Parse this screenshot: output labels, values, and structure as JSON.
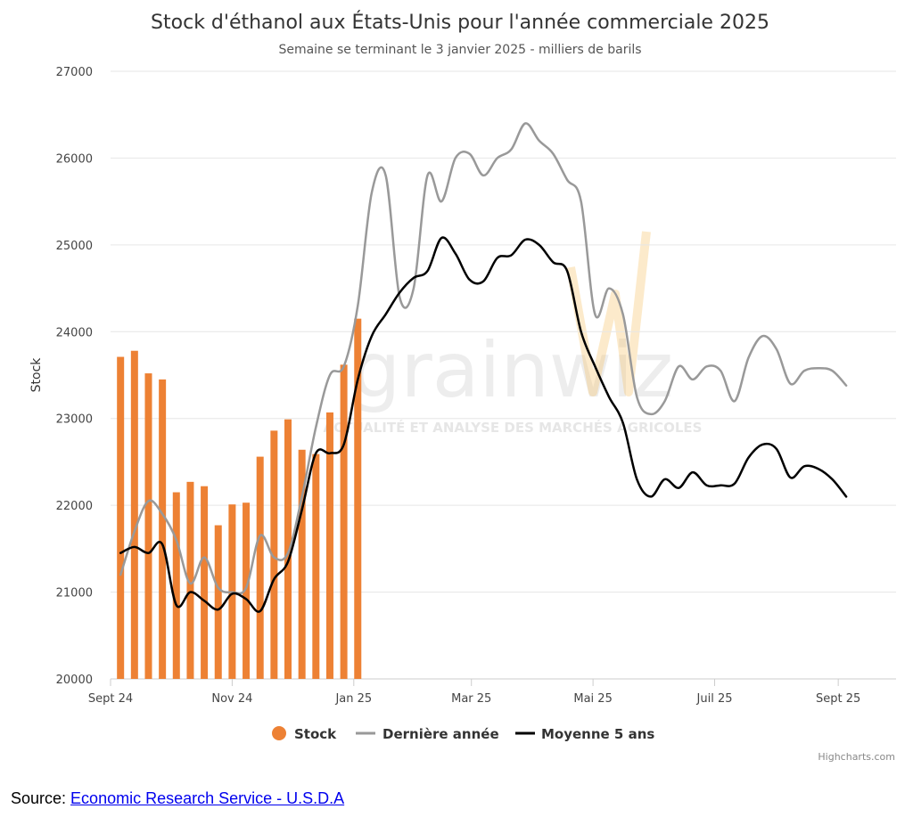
{
  "colors": {
    "stock": "#ed8134",
    "last_year": "#999999",
    "five_year_avg": "#000000",
    "watermark_accent": "#f5c46a"
  },
  "watermark": {
    "big": "grainwiz",
    "small": "ACTUALITÉ ET ANALYSE DES MARCHÉS AGRICOLES"
  },
  "credits": "Highcharts.com",
  "source": {
    "prefix": "Source: ",
    "link_text": "Economic Research Service - U.S.D.A"
  },
  "chart_data": {
    "type": "bar",
    "title": "Stock d'éthanol aux États-Unis pour l'année commerciale 2025",
    "subtitle": "Semaine se terminant le 3 janvier 2025 - milliers de barils",
    "ylabel": "Stock",
    "xlabel": "",
    "ylim": [
      20000,
      27000
    ],
    "yticks": [
      20000,
      21000,
      22000,
      23000,
      24000,
      25000,
      26000,
      27000
    ],
    "x_range": [
      "2024-09-01",
      "2025-09-30"
    ],
    "x_ticks": [
      {
        "date": "2024-09-01",
        "label": "Sept 24"
      },
      {
        "date": "2024-11-01",
        "label": "Nov 24"
      },
      {
        "date": "2025-01-01",
        "label": "Jan 25"
      },
      {
        "date": "2025-03-01",
        "label": "Mar 25"
      },
      {
        "date": "2025-05-01",
        "label": "Mai 25"
      },
      {
        "date": "2025-07-01",
        "label": "Juil 25"
      },
      {
        "date": "2025-09-01",
        "label": "Sept 25"
      }
    ],
    "grid": true,
    "legend_position": "bottom-center",
    "series": [
      {
        "name": "Stock",
        "type": "bar",
        "points": [
          [
            "2024-09-06",
            23710
          ],
          [
            "2024-09-13",
            23780
          ],
          [
            "2024-09-20",
            23520
          ],
          [
            "2024-09-27",
            23450
          ],
          [
            "2024-10-04",
            22150
          ],
          [
            "2024-10-11",
            22270
          ],
          [
            "2024-10-18",
            22220
          ],
          [
            "2024-10-25",
            21770
          ],
          [
            "2024-11-01",
            22010
          ],
          [
            "2024-11-08",
            22030
          ],
          [
            "2024-11-15",
            22560
          ],
          [
            "2024-11-22",
            22860
          ],
          [
            "2024-11-29",
            22990
          ],
          [
            "2024-12-06",
            22640
          ],
          [
            "2024-12-13",
            22590
          ],
          [
            "2024-12-20",
            23070
          ],
          [
            "2024-12-27",
            23620
          ],
          [
            "2025-01-03",
            24150
          ]
        ]
      },
      {
        "name": "Dernière année",
        "type": "line",
        "points": [
          [
            "2024-09-06",
            21200
          ],
          [
            "2024-09-13",
            21700
          ],
          [
            "2024-09-20",
            22050
          ],
          [
            "2024-09-27",
            21900
          ],
          [
            "2024-10-04",
            21600
          ],
          [
            "2024-10-11",
            21100
          ],
          [
            "2024-10-18",
            21400
          ],
          [
            "2024-10-25",
            21050
          ],
          [
            "2024-11-01",
            21000
          ],
          [
            "2024-11-08",
            21050
          ],
          [
            "2024-11-15",
            21650
          ],
          [
            "2024-11-22",
            21400
          ],
          [
            "2024-11-29",
            21450
          ],
          [
            "2024-12-06",
            22100
          ],
          [
            "2024-12-13",
            22900
          ],
          [
            "2024-12-20",
            23500
          ],
          [
            "2024-12-27",
            23600
          ],
          [
            "2025-01-03",
            24300
          ],
          [
            "2025-01-10",
            25600
          ],
          [
            "2025-01-17",
            25800
          ],
          [
            "2025-01-24",
            24400
          ],
          [
            "2025-01-31",
            24500
          ],
          [
            "2025-02-07",
            25800
          ],
          [
            "2025-02-14",
            25500
          ],
          [
            "2025-02-21",
            26000
          ],
          [
            "2025-02-28",
            26050
          ],
          [
            "2025-03-07",
            25800
          ],
          [
            "2025-03-14",
            26000
          ],
          [
            "2025-03-21",
            26100
          ],
          [
            "2025-03-28",
            26400
          ],
          [
            "2025-04-04",
            26200
          ],
          [
            "2025-04-11",
            26050
          ],
          [
            "2025-04-18",
            25750
          ],
          [
            "2025-04-25",
            25500
          ],
          [
            "2025-05-02",
            24200
          ],
          [
            "2025-05-09",
            24500
          ],
          [
            "2025-05-16",
            24200
          ],
          [
            "2025-05-23",
            23250
          ],
          [
            "2025-05-30",
            23050
          ],
          [
            "2025-06-06",
            23200
          ],
          [
            "2025-06-13",
            23600
          ],
          [
            "2025-06-20",
            23450
          ],
          [
            "2025-06-27",
            23600
          ],
          [
            "2025-07-04",
            23550
          ],
          [
            "2025-07-11",
            23200
          ],
          [
            "2025-07-18",
            23700
          ],
          [
            "2025-07-25",
            23950
          ],
          [
            "2025-08-01",
            23800
          ],
          [
            "2025-08-08",
            23400
          ],
          [
            "2025-08-15",
            23550
          ],
          [
            "2025-08-22",
            23580
          ],
          [
            "2025-08-29",
            23550
          ],
          [
            "2025-09-05",
            23380
          ]
        ]
      },
      {
        "name": "Moyenne 5 ans",
        "type": "line",
        "points": [
          [
            "2024-09-06",
            21450
          ],
          [
            "2024-09-13",
            21520
          ],
          [
            "2024-09-20",
            21450
          ],
          [
            "2024-09-27",
            21550
          ],
          [
            "2024-10-04",
            20850
          ],
          [
            "2024-10-11",
            21000
          ],
          [
            "2024-10-18",
            20900
          ],
          [
            "2024-10-25",
            20800
          ],
          [
            "2024-11-01",
            20980
          ],
          [
            "2024-11-08",
            20920
          ],
          [
            "2024-11-15",
            20780
          ],
          [
            "2024-11-22",
            21150
          ],
          [
            "2024-11-29",
            21350
          ],
          [
            "2024-12-06",
            21950
          ],
          [
            "2024-12-13",
            22600
          ],
          [
            "2024-12-20",
            22600
          ],
          [
            "2024-12-27",
            22700
          ],
          [
            "2025-01-03",
            23450
          ],
          [
            "2025-01-10",
            23950
          ],
          [
            "2025-01-17",
            24200
          ],
          [
            "2025-01-24",
            24450
          ],
          [
            "2025-01-31",
            24620
          ],
          [
            "2025-02-07",
            24700
          ],
          [
            "2025-02-14",
            25080
          ],
          [
            "2025-02-21",
            24900
          ],
          [
            "2025-02-28",
            24600
          ],
          [
            "2025-03-07",
            24580
          ],
          [
            "2025-03-14",
            24850
          ],
          [
            "2025-03-21",
            24880
          ],
          [
            "2025-03-28",
            25060
          ],
          [
            "2025-04-04",
            25000
          ],
          [
            "2025-04-11",
            24800
          ],
          [
            "2025-04-18",
            24700
          ],
          [
            "2025-04-25",
            24000
          ],
          [
            "2025-05-02",
            23600
          ],
          [
            "2025-05-09",
            23250
          ],
          [
            "2025-05-16",
            22950
          ],
          [
            "2025-05-23",
            22300
          ],
          [
            "2025-05-30",
            22100
          ],
          [
            "2025-06-06",
            22300
          ],
          [
            "2025-06-13",
            22200
          ],
          [
            "2025-06-20",
            22380
          ],
          [
            "2025-06-27",
            22230
          ],
          [
            "2025-07-04",
            22230
          ],
          [
            "2025-07-11",
            22250
          ],
          [
            "2025-07-18",
            22550
          ],
          [
            "2025-07-25",
            22700
          ],
          [
            "2025-08-01",
            22650
          ],
          [
            "2025-08-08",
            22320
          ],
          [
            "2025-08-15",
            22450
          ],
          [
            "2025-08-22",
            22420
          ],
          [
            "2025-08-29",
            22300
          ],
          [
            "2025-09-05",
            22100
          ]
        ]
      }
    ]
  }
}
